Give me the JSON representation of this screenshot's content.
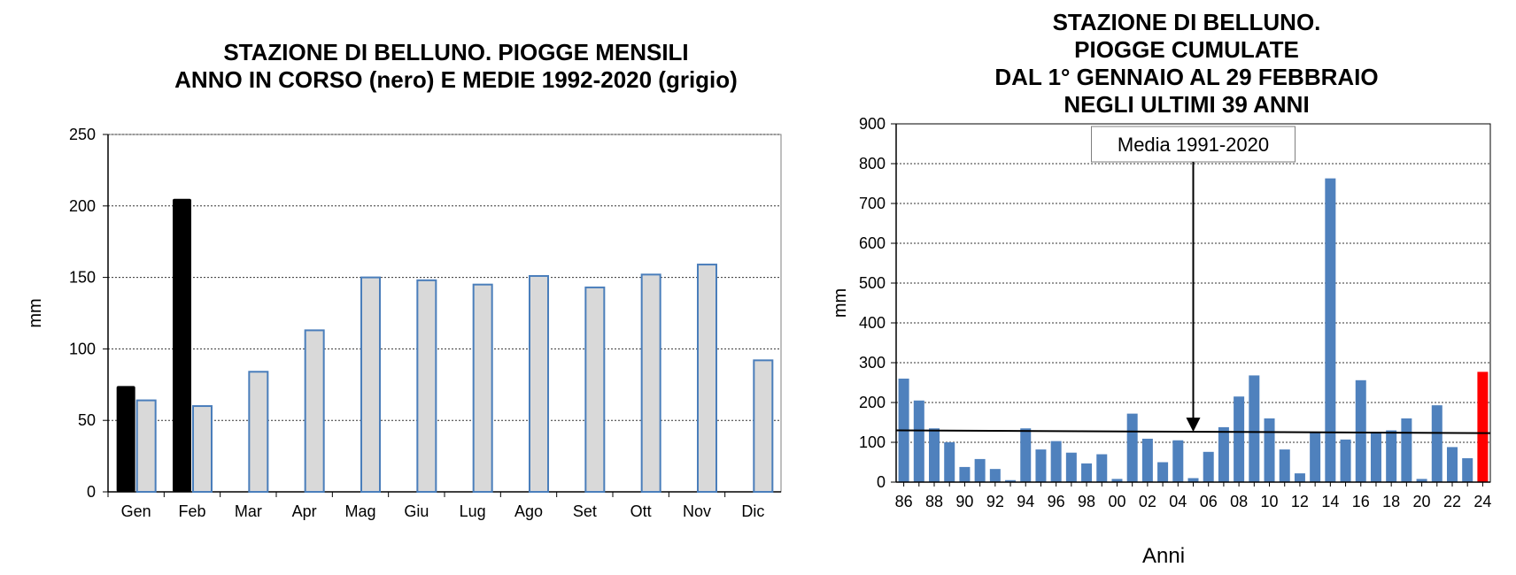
{
  "chart_data": [
    {
      "type": "bar",
      "title_lines": [
        "STAZIONE DI BELLUNO. PIOGGE MENSILI",
        "ANNO IN CORSO (nero) E MEDIE 1992-2020 (grigio)"
      ],
      "ylabel": "mm",
      "xlabel": "",
      "ylim": [
        0,
        250
      ],
      "yticks": [
        0,
        50,
        100,
        150,
        200,
        250
      ],
      "grid": true,
      "categories": [
        "Gen",
        "Feb",
        "Mar",
        "Apr",
        "Mag",
        "Giu",
        "Lug",
        "Ago",
        "Set",
        "Ott",
        "Nov",
        "Dic"
      ],
      "series": [
        {
          "name": "nero",
          "color": "#000000",
          "values": [
            74,
            205,
            null,
            null,
            null,
            null,
            null,
            null,
            null,
            null,
            null,
            null
          ]
        },
        {
          "name": "grigio",
          "color": "#d9d9d9",
          "edge": "#4a7ebb",
          "values": [
            64,
            60,
            84,
            113,
            150,
            148,
            145,
            151,
            143,
            152,
            159,
            92
          ]
        }
      ]
    },
    {
      "type": "bar",
      "title_lines": [
        "STAZIONE DI BELLUNO.",
        "PIOGGE CUMULATE",
        "DAL 1° GENNAIO AL 29 FEBBRAIO",
        "NEGLI ULTIMI 39 ANNI"
      ],
      "ylabel": "mm",
      "xlabel": "Anni",
      "ylim": [
        0,
        900
      ],
      "yticks": [
        0,
        100,
        200,
        300,
        400,
        500,
        600,
        700,
        800,
        900
      ],
      "grid": true,
      "categories": [
        "86",
        "87",
        "88",
        "89",
        "90",
        "91",
        "92",
        "93",
        "94",
        "95",
        "96",
        "97",
        "98",
        "99",
        "00",
        "01",
        "02",
        "03",
        "04",
        "05",
        "06",
        "07",
        "08",
        "09",
        "10",
        "11",
        "12",
        "13",
        "14",
        "15",
        "16",
        "17",
        "18",
        "19",
        "20",
        "21",
        "22",
        "23",
        "24"
      ],
      "tick_labels": [
        "86",
        "88",
        "90",
        "92",
        "94",
        "96",
        "98",
        "00",
        "02",
        "04",
        "06",
        "08",
        "10",
        "12",
        "14",
        "16",
        "18",
        "20",
        "22",
        "24"
      ],
      "values": [
        260,
        205,
        135,
        100,
        38,
        58,
        33,
        5,
        135,
        82,
        103,
        74,
        47,
        70,
        8,
        172,
        109,
        50,
        105,
        10,
        76,
        138,
        215,
        268,
        160,
        82,
        22,
        125,
        763,
        107,
        256,
        125,
        130,
        160,
        8,
        193,
        88,
        60,
        277
      ],
      "bar_color": "#4f81bd",
      "highlight": {
        "category": "24",
        "color": "#ff0000"
      },
      "mean_line": {
        "label": "Media 1991-2020",
        "start": 130,
        "end": 123,
        "annotation_at": "05"
      }
    }
  ]
}
